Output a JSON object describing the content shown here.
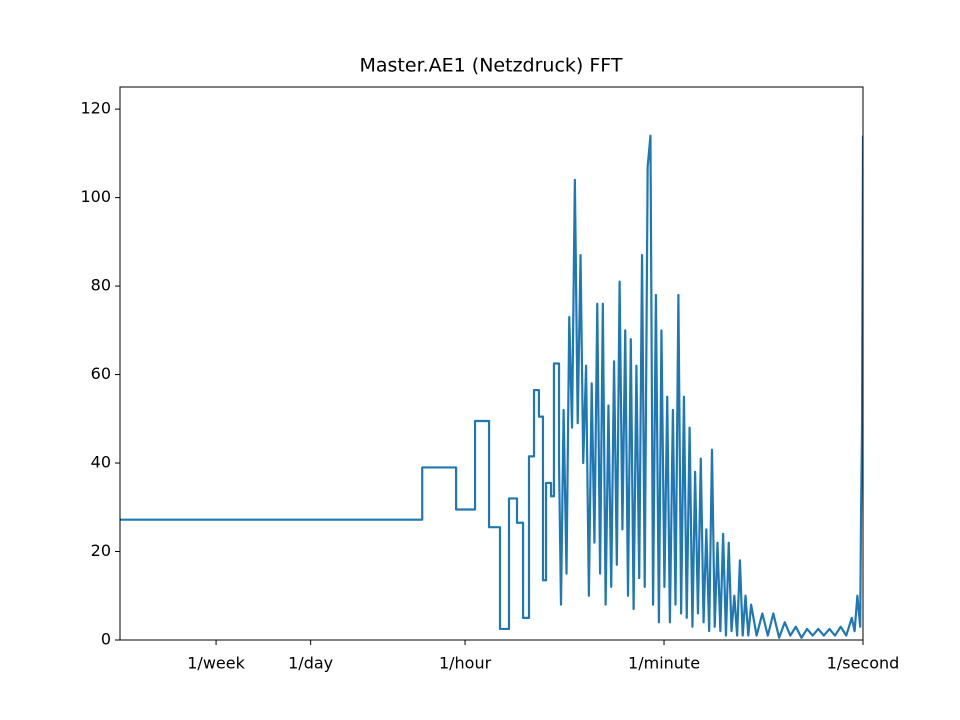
{
  "chart_data": {
    "type": "line",
    "title": "Master.AE1 (Netzdruck) FFT",
    "xscale": "log",
    "color": "#1f77b4",
    "xlim": [
      2.29e-07,
      1
    ],
    "ylim": [
      0,
      125
    ],
    "yticks": [
      0,
      20,
      40,
      60,
      80,
      100,
      120
    ],
    "xticks": [
      {
        "value": 1.6534391534391535e-06,
        "label": "1/week"
      },
      {
        "value": 1.1574074074074073e-05,
        "label": "1/day"
      },
      {
        "value": 0.0002777777777777778,
        "label": "1/hour"
      },
      {
        "value": 0.016666666666666666,
        "label": "1/minute"
      },
      {
        "value": 1,
        "label": "1/second"
      }
    ],
    "x": [
      2.29e-07,
      0.000115,
      0.000115,
      0.000231,
      0.000231,
      0.000341,
      0.000341,
      0.000455,
      0.000455,
      0.00057,
      0.00057,
      0.000686,
      0.000686,
      0.000809,
      0.000809,
      0.000916,
      0.000916,
      0.001035,
      0.001035,
      0.001148,
      0.001148,
      0.00127,
      0.00127,
      0.00138,
      0.00138,
      0.00147,
      0.00147,
      0.00163,
      0.00163,
      0.00173,
      0.00173,
      0.00192,
      0.00192,
      0.002,
      0.00211,
      0.00224,
      0.00237,
      0.00251,
      0.00266,
      0.00282,
      0.00299,
      0.00316,
      0.00335,
      0.00355,
      0.00376,
      0.00398,
      0.00422,
      0.00447,
      0.00473,
      0.00501,
      0.00531,
      0.00562,
      0.00596,
      0.00631,
      0.00668,
      0.00708,
      0.0075,
      0.00794,
      0.00841,
      0.00891,
      0.00944,
      0.01,
      0.0106,
      0.0112,
      0.0119,
      0.0126,
      0.0133,
      0.0141,
      0.015,
      0.0158,
      0.0168,
      0.0178,
      0.0188,
      0.02,
      0.0211,
      0.0224,
      0.0237,
      0.0251,
      0.0266,
      0.0282,
      0.0299,
      0.0316,
      0.0335,
      0.0355,
      0.0376,
      0.0398,
      0.0422,
      0.0447,
      0.0473,
      0.0501,
      0.0531,
      0.0562,
      0.0596,
      0.0631,
      0.0668,
      0.0708,
      0.075,
      0.0794,
      0.0841,
      0.0891,
      0.0944,
      0.1,
      0.112,
      0.126,
      0.141,
      0.158,
      0.178,
      0.2,
      0.224,
      0.251,
      0.282,
      0.316,
      0.355,
      0.398,
      0.447,
      0.501,
      0.562,
      0.631,
      0.708,
      0.794,
      0.841,
      0.891,
      0.944,
      0.96,
      0.98,
      1.0
    ],
    "values": [
      27.2,
      27.2,
      39,
      39,
      29.5,
      29.5,
      49.5,
      49.5,
      25.5,
      25.5,
      2.5,
      2.5,
      32,
      32,
      26.5,
      26.5,
      5,
      5,
      41.5,
      41.5,
      56.5,
      56.5,
      50.5,
      50.5,
      13.5,
      13.5,
      35.5,
      35.5,
      32.5,
      32.5,
      62.5,
      62.5,
      40,
      8,
      52,
      15,
      73,
      48,
      104,
      49,
      87,
      40,
      62,
      10,
      58,
      22,
      76,
      15,
      76,
      8,
      53,
      12,
      63,
      17,
      81,
      25,
      70,
      10,
      68,
      7,
      62,
      14,
      87,
      12,
      107,
      114,
      8,
      78,
      4,
      70,
      12,
      55,
      4,
      52,
      8,
      78,
      6,
      55,
      5,
      48,
      3,
      38,
      6,
      41,
      4,
      25,
      2,
      43,
      3,
      22,
      2,
      24,
      1,
      22,
      2,
      10,
      1,
      18,
      1,
      10,
      1,
      8,
      1,
      6,
      1,
      6,
      0.5,
      4,
      1,
      3,
      0.5,
      2.5,
      1,
      2.5,
      1,
      2.5,
      1,
      3,
      1,
      5,
      2,
      10,
      3,
      28,
      48,
      114
    ]
  }
}
